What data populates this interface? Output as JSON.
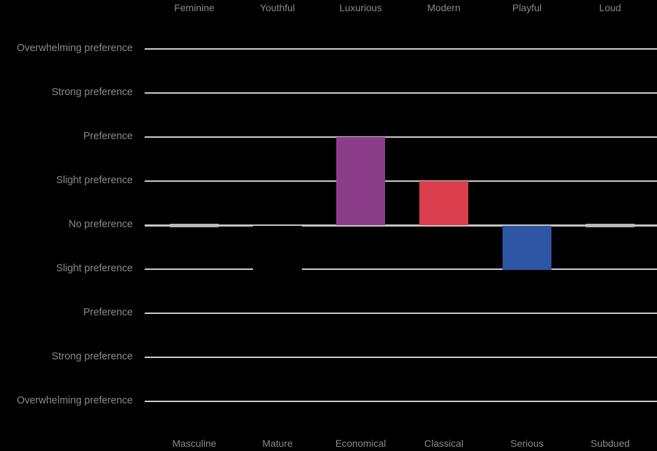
{
  "chart_data": {
    "type": "bar",
    "title": "",
    "orientation": "diverging",
    "categories_top": [
      "Feminine",
      "Youthful",
      "Luxurious",
      "Modern",
      "Playful",
      "Loud"
    ],
    "categories_bottom": [
      "Masculine",
      "Mature",
      "Economical",
      "Classical",
      "Serious",
      "Subdued"
    ],
    "values": [
      0,
      -1,
      2,
      1,
      -1,
      0
    ],
    "colors": [
      "#b8b9bd",
      "#000000",
      "#8b3d8a",
      "#db3e4d",
      "#2f55a5",
      "#b8b9bd"
    ],
    "y_ticks": [
      {
        "value": 4,
        "label": "Overwhelming preference"
      },
      {
        "value": 3,
        "label": "Strong preference"
      },
      {
        "value": 2,
        "label": "Preference"
      },
      {
        "value": 1,
        "label": "Slight preference"
      },
      {
        "value": 0,
        "label": "No preference"
      },
      {
        "value": -1,
        "label": "Slight preference"
      },
      {
        "value": -2,
        "label": "Preference"
      },
      {
        "value": -3,
        "label": "Strong preference"
      },
      {
        "value": -4,
        "label": "Overwhelming preference"
      }
    ],
    "ylim": [
      -4,
      4
    ],
    "grid": true,
    "legend": null
  },
  "labels": {
    "top": [
      "Feminine",
      "Youthful",
      "Luxurious",
      "Modern",
      "Playful",
      "Loud"
    ],
    "bottom": [
      "Masculine",
      "Mature",
      "Economical",
      "Classical",
      "Serious",
      "Subdued"
    ],
    "y": [
      "Overwhelming preference",
      "Strong preference",
      "Preference",
      "Slight preference",
      "No preference",
      "Slight preference",
      "Preference",
      "Strong preference",
      "Overwhelming preference"
    ]
  }
}
